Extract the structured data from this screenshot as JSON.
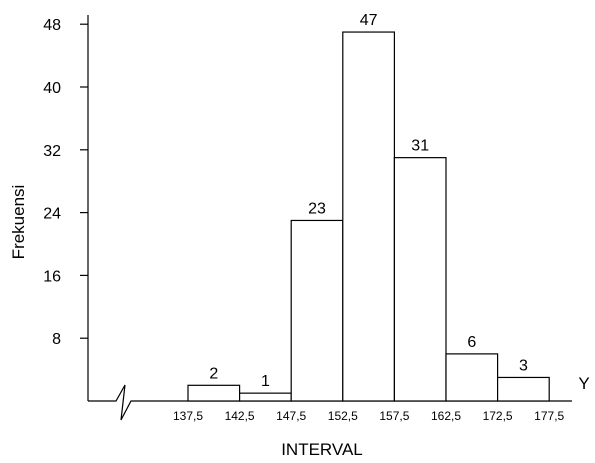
{
  "chart_data": {
    "type": "bar",
    "categories": [
      [
        "137,5",
        "142,5"
      ],
      [
        "142,5",
        "147,5"
      ],
      [
        "147,5",
        "152,5"
      ],
      [
        "152,5",
        "157,5"
      ],
      [
        "157,5",
        "162,5"
      ],
      [
        "162,5",
        "172,5"
      ],
      [
        "172,5",
        "177,5"
      ]
    ],
    "values": [
      2,
      1,
      23,
      47,
      31,
      6,
      3
    ],
    "data_labels": [
      "2",
      "1",
      "23",
      "47",
      "31",
      "6",
      "3"
    ],
    "x_ticks": [
      "137,5",
      "142,5",
      "147,5",
      "152,5",
      "157,5",
      "162,5",
      "172,5",
      "177,5"
    ],
    "y_ticks": [
      8,
      16,
      24,
      32,
      40,
      48
    ],
    "ylim": [
      0,
      50
    ],
    "xlabel": "INTERVAL",
    "ylabel": "Frekuensi",
    "x_axis_end_label": "Y",
    "axis_break": true,
    "grid": false,
    "bar_fill": "#ffffff",
    "bar_stroke": "#000000"
  }
}
